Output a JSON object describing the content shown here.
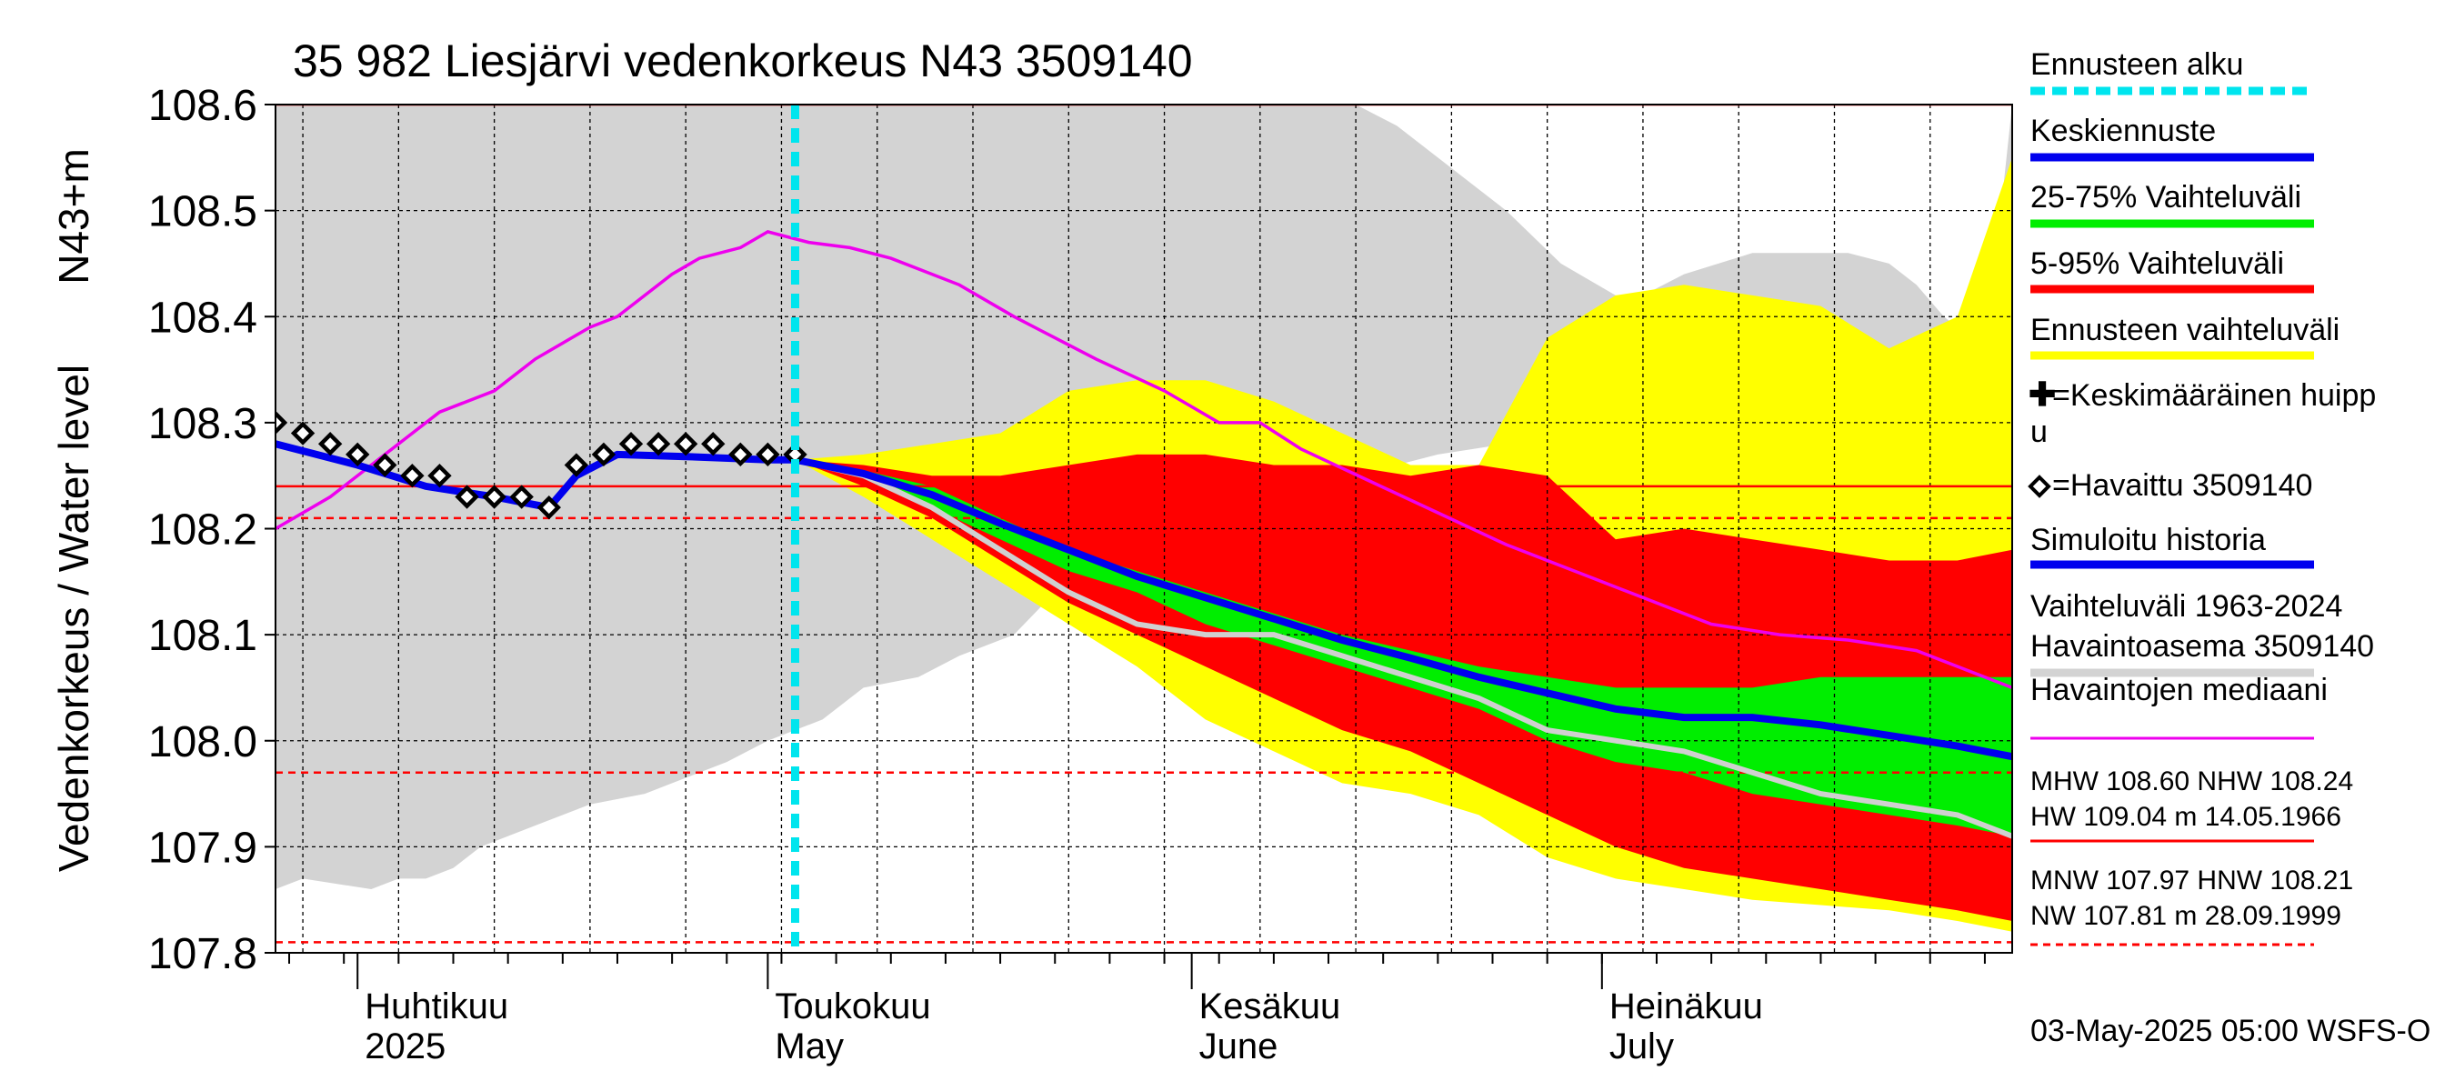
{
  "chart_data": {
    "type": "line",
    "title": "35 982 Liesjärvi vedenkorkeus N43 3509140",
    "ylabel_fi": "Vedenkorkeus / Water level",
    "ylabel_unit": "N43+m",
    "ylim": [
      107.8,
      108.6
    ],
    "yticks": [
      107.8,
      107.9,
      108.0,
      108.1,
      108.2,
      108.3,
      108.4,
      108.5,
      108.6
    ],
    "ytick_labels": [
      "107.8",
      "107.9",
      "108.0",
      "108.1",
      "108.2",
      "108.3",
      "108.4",
      "108.5",
      "108.6"
    ],
    "x_start": "2025-03-26",
    "x_end": "2025-07-31",
    "forecast_start": "2025-05-03",
    "months": [
      {
        "date": "2025-04-01",
        "fi": "Huhtikuu",
        "en": "2025"
      },
      {
        "date": "2025-05-01",
        "fi": "Toukokuu",
        "en": "May"
      },
      {
        "date": "2025-06-01",
        "fi": "Kesäkuu",
        "en": "June"
      },
      {
        "date": "2025-07-01",
        "fi": "Heinäkuu",
        "en": "July"
      }
    ],
    "reference_lines": [
      {
        "name": "MHW",
        "value": 108.6,
        "style": "solid"
      },
      {
        "name": "NHW",
        "value": 108.24,
        "style": "solid"
      },
      {
        "name": "HNW",
        "value": 108.21,
        "style": "dashed"
      },
      {
        "name": "MNW",
        "value": 107.97,
        "style": "dashed"
      },
      {
        "name": "NW",
        "value": 107.81,
        "style": "dashed"
      }
    ],
    "history_band": {
      "name": "Vaihteluväli 1963-2024 Havaintoasema 3509140",
      "dates": [
        "2025-03-26",
        "2025-03-28",
        "2025-04-02",
        "2025-04-04",
        "2025-04-06",
        "2025-04-08",
        "2025-04-10",
        "2025-04-14",
        "2025-04-18",
        "2025-04-22",
        "2025-04-26",
        "2025-04-28",
        "2025-05-01",
        "2025-05-05",
        "2025-05-08",
        "2025-05-12",
        "2025-05-15",
        "2025-05-19",
        "2025-05-22",
        "2025-05-25",
        "2025-05-28",
        "2025-06-01",
        "2025-06-05",
        "2025-06-10",
        "2025-06-13",
        "2025-06-16",
        "2025-06-19",
        "2025-06-24",
        "2025-06-28",
        "2025-07-02",
        "2025-07-04",
        "2025-07-07",
        "2025-07-12",
        "2025-07-16",
        "2025-07-19",
        "2025-07-22",
        "2025-07-24",
        "2025-07-26",
        "2025-07-28",
        "2025-07-30",
        "2025-07-31"
      ],
      "upper": [
        108.6,
        108.6,
        108.6,
        108.6,
        108.6,
        108.6,
        108.6,
        108.6,
        108.6,
        108.6,
        108.6,
        108.6,
        108.6,
        108.6,
        108.6,
        108.6,
        108.6,
        108.6,
        108.6,
        108.6,
        108.6,
        108.6,
        108.6,
        108.6,
        108.6,
        108.58,
        108.55,
        108.5,
        108.45,
        108.42,
        108.42,
        108.44,
        108.46,
        108.46,
        108.46,
        108.45,
        108.43,
        108.4,
        108.38,
        108.48,
        108.6
      ],
      "lower": [
        107.86,
        107.87,
        107.86,
        107.87,
        107.87,
        107.88,
        107.9,
        107.92,
        107.94,
        107.95,
        107.97,
        107.98,
        108.0,
        108.02,
        108.05,
        108.06,
        108.08,
        108.1,
        108.14,
        108.15,
        108.17,
        108.2,
        108.22,
        108.24,
        108.25,
        108.26,
        108.27,
        108.28,
        108.29,
        108.3,
        108.3,
        108.3,
        108.3,
        108.3,
        108.3,
        108.29,
        108.28,
        108.27,
        108.26,
        108.24,
        108.22
      ]
    },
    "forecast_dates": [
      "2025-05-03",
      "2025-05-08",
      "2025-05-13",
      "2025-05-18",
      "2025-05-23",
      "2025-05-28",
      "2025-06-02",
      "2025-06-07",
      "2025-06-12",
      "2025-06-17",
      "2025-06-22",
      "2025-06-27",
      "2025-07-02",
      "2025-07-07",
      "2025-07-12",
      "2025-07-17",
      "2025-07-22",
      "2025-07-27",
      "2025-07-31"
    ],
    "series": [
      {
        "name": "Ennusteen vaihteluväli",
        "kind": "band",
        "color": "#ffff00",
        "upper": [
          108.265,
          108.27,
          108.28,
          108.29,
          108.33,
          108.34,
          108.34,
          108.32,
          108.29,
          108.26,
          108.26,
          108.38,
          108.42,
          108.43,
          108.42,
          108.41,
          108.37,
          108.4,
          108.55
        ],
        "lower": [
          108.265,
          108.23,
          108.19,
          108.15,
          108.11,
          108.07,
          108.02,
          107.99,
          107.96,
          107.95,
          107.93,
          107.89,
          107.87,
          107.86,
          107.85,
          107.845,
          107.84,
          107.83,
          107.82
        ]
      },
      {
        "name": "5-95% Vaihteluväli",
        "kind": "band",
        "color": "#ff0000",
        "upper": [
          108.265,
          108.26,
          108.25,
          108.25,
          108.26,
          108.27,
          108.27,
          108.26,
          108.26,
          108.25,
          108.26,
          108.25,
          108.19,
          108.2,
          108.19,
          108.18,
          108.17,
          108.17,
          108.18
        ],
        "lower": [
          108.265,
          108.24,
          108.21,
          108.17,
          108.13,
          108.1,
          108.07,
          108.04,
          108.01,
          107.99,
          107.96,
          107.93,
          107.9,
          107.88,
          107.87,
          107.86,
          107.85,
          107.84,
          107.83
        ]
      },
      {
        "name": "25-75% Vaihteluväli",
        "kind": "band",
        "color": "#00ee00",
        "upper": [
          108.265,
          108.255,
          108.24,
          108.21,
          108.18,
          108.16,
          108.14,
          108.12,
          108.1,
          108.085,
          108.07,
          108.06,
          108.05,
          108.05,
          108.05,
          108.06,
          108.06,
          108.06,
          108.06
        ],
        "lower": [
          108.265,
          108.25,
          108.22,
          108.19,
          108.16,
          108.14,
          108.11,
          108.09,
          108.07,
          108.05,
          108.03,
          108.0,
          107.98,
          107.97,
          107.95,
          107.94,
          107.93,
          107.92,
          107.91
        ]
      },
      {
        "name": "Keskiennuste",
        "kind": "line",
        "color": "#0000ee",
        "values": [
          108.265,
          108.252,
          108.232,
          108.205,
          108.18,
          108.155,
          108.135,
          108.115,
          108.095,
          108.078,
          108.06,
          108.045,
          108.03,
          108.022,
          108.022,
          108.015,
          108.005,
          107.995,
          107.985
        ]
      },
      {
        "name": "Simuloitu historia (ennuste)",
        "kind": "line",
        "color": "#d0d0d0",
        "values": [
          108.265,
          108.25,
          108.22,
          108.18,
          108.14,
          108.11,
          108.1,
          108.1,
          108.08,
          108.06,
          108.04,
          108.01,
          108.0,
          107.99,
          107.97,
          107.95,
          107.94,
          107.93,
          107.91
        ]
      }
    ],
    "observed": {
      "name": "=Havaittu 3509140",
      "marker": "diamond",
      "dates": [
        "2025-03-26",
        "2025-03-28",
        "2025-03-30",
        "2025-04-01",
        "2025-04-03",
        "2025-04-05",
        "2025-04-07",
        "2025-04-09",
        "2025-04-11",
        "2025-04-13",
        "2025-04-15",
        "2025-04-17",
        "2025-04-19",
        "2025-04-21",
        "2025-04-23",
        "2025-04-25",
        "2025-04-27",
        "2025-04-29",
        "2025-05-01",
        "2025-05-03"
      ],
      "values": [
        108.3,
        108.29,
        108.28,
        108.27,
        108.26,
        108.25,
        108.25,
        108.23,
        108.23,
        108.23,
        108.22,
        108.26,
        108.27,
        108.28,
        108.28,
        108.28,
        108.28,
        108.27,
        108.27,
        108.27
      ]
    },
    "simulated_history": {
      "name": "Simuloitu historia",
      "color": "#0000ee",
      "dates": [
        "2025-03-26",
        "2025-04-01",
        "2025-04-06",
        "2025-04-11",
        "2025-04-15",
        "2025-04-17",
        "2025-04-20",
        "2025-04-25",
        "2025-05-01",
        "2025-05-03"
      ],
      "values": [
        108.28,
        108.26,
        108.24,
        108.23,
        108.22,
        108.25,
        108.27,
        108.268,
        108.265,
        108.265
      ]
    },
    "median": {
      "name": "Havaintojen mediaani",
      "color": "#ee00ee",
      "dates": [
        "2025-03-26",
        "2025-03-30",
        "2025-04-03",
        "2025-04-07",
        "2025-04-11",
        "2025-04-14",
        "2025-04-18",
        "2025-04-20",
        "2025-04-22",
        "2025-04-24",
        "2025-04-26",
        "2025-04-29",
        "2025-05-01",
        "2025-05-04",
        "2025-05-07",
        "2025-05-10",
        "2025-05-15",
        "2025-05-19",
        "2025-05-22",
        "2025-05-25",
        "2025-05-30",
        "2025-06-03",
        "2025-06-06",
        "2025-06-09",
        "2025-06-14",
        "2025-06-19",
        "2025-06-24",
        "2025-06-29",
        "2025-07-04",
        "2025-07-09",
        "2025-07-14",
        "2025-07-19",
        "2025-07-24",
        "2025-07-29",
        "2025-07-31"
      ],
      "values": [
        108.2,
        108.23,
        108.27,
        108.31,
        108.33,
        108.36,
        108.39,
        108.4,
        108.42,
        108.44,
        108.455,
        108.465,
        108.48,
        108.47,
        108.465,
        108.455,
        108.43,
        108.4,
        108.38,
        108.36,
        108.33,
        108.3,
        108.3,
        108.275,
        108.245,
        108.215,
        108.185,
        108.16,
        108.135,
        108.11,
        108.1,
        108.095,
        108.085,
        108.06,
        108.05
      ]
    },
    "legend_placement": "right",
    "grid": true
  },
  "legend": [
    {
      "label": "Ennusteen alku",
      "swatch": "dashed-cyan",
      "color": "#00e5ee"
    },
    {
      "label": "Keskiennuste",
      "swatch": "line",
      "color": "#0000ee"
    },
    {
      "label": "25-75% Vaihteluväli",
      "swatch": "line",
      "color": "#00ee00"
    },
    {
      "label": "5-95% Vaihteluväli",
      "swatch": "line",
      "color": "#ff0000"
    },
    {
      "label": "Ennusteen vaihteluväli",
      "swatch": "line",
      "color": "#ffff00"
    },
    {
      "label": "=Keskimääräinen huipp",
      "label2": "u",
      "swatch": "plus",
      "color": "#000000"
    },
    {
      "label": "=Havaittu 3509140",
      "swatch": "diamond",
      "color": "#000000"
    },
    {
      "label": "Simuloitu historia",
      "swatch": "line",
      "color": "#0000ee"
    },
    {
      "label": "Vaihteluväli 1963-2024",
      "label2": " Havaintoasema 3509140",
      "swatch": "line",
      "color": "#d3d3d3"
    },
    {
      "label": "Havaintojen mediaani",
      "swatch": "thin-line",
      "color": "#ee00ee"
    }
  ],
  "stats": {
    "block1_line1": "MHW 108.60 NHW 108.24",
    "block1_line2": "HW 109.04 m 14.05.1966",
    "block2_line1": "MNW 107.97 HNW 108.21",
    "block2_line2": "NW 107.81 m 28.09.1999"
  },
  "footer": "03-May-2025 05:00 WSFS-O"
}
